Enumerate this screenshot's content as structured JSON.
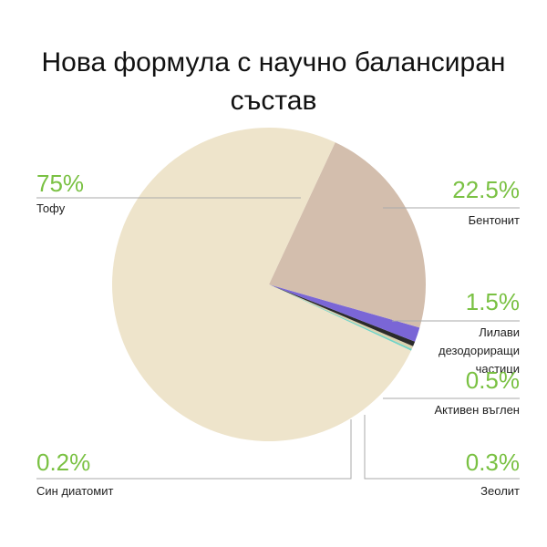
{
  "chart_data": {
    "type": "pie",
    "title": "Нова формула с научно балансиран състав",
    "categories": [
      "Тофу",
      "Бентонит",
      "Лилави дезодориращи частици",
      "Активен въглен",
      "Зеолит",
      "Син диатомит"
    ],
    "values": [
      75,
      22.5,
      1.5,
      0.5,
      0.3,
      0.2
    ],
    "value_labels": [
      "75%",
      "22.5%",
      "1.5%",
      "0.5%",
      "0.3%",
      "0.2%"
    ],
    "colors": [
      "#eee4cb",
      "#d3bead",
      "#7a66d6",
      "#2b2b2b",
      "#d9d2ae",
      "#72d3c6"
    ]
  }
}
